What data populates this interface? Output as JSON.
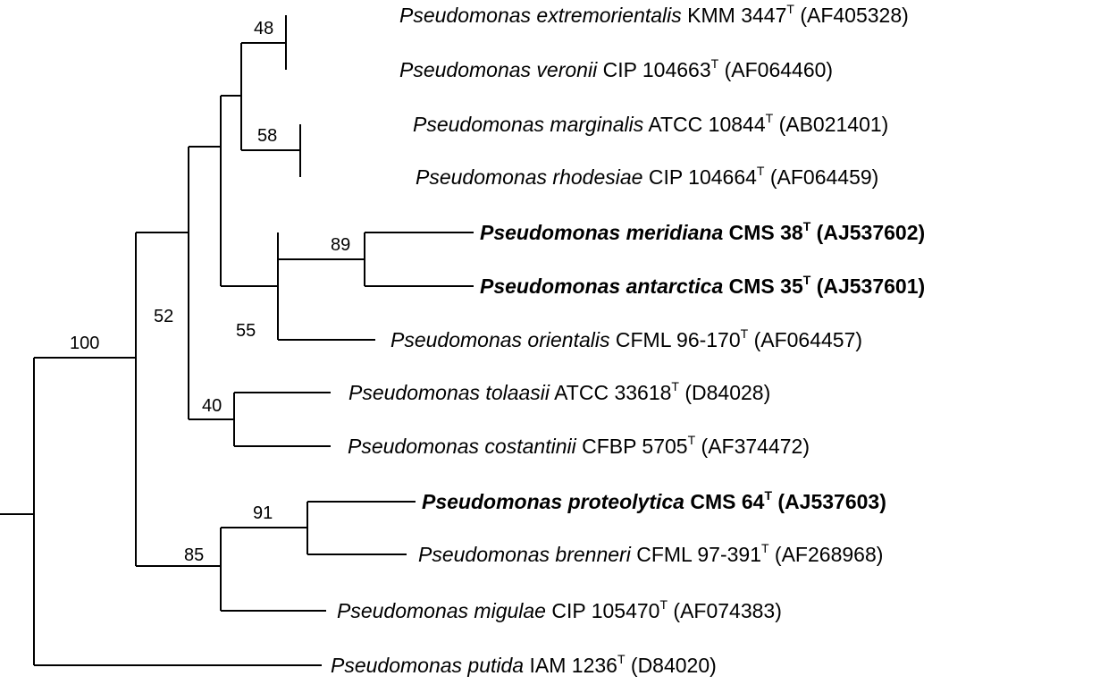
{
  "tree": {
    "taxa": [
      {
        "id": "extremorientalis",
        "genus_species": "Pseudomonas extremorientalis",
        "strain": "KMM 3447",
        "superscript": "T",
        "accession": "(AF405328)",
        "bold": false
      },
      {
        "id": "veronii",
        "genus_species": "Pseudomonas veronii",
        "strain": "CIP 104663",
        "superscript": "T",
        "accession": "(AF064460)",
        "bold": false
      },
      {
        "id": "marginalis",
        "genus_species": "Pseudomonas marginalis",
        "strain": "ATCC 10844",
        "superscript": "T",
        "accession": "(AB021401)",
        "bold": false
      },
      {
        "id": "rhodesiae",
        "genus_species": "Pseudomonas rhodesiae",
        "strain": "CIP 104664",
        "superscript": "T",
        "accession": "(AF064459)",
        "bold": false
      },
      {
        "id": "meridiana",
        "genus_species": "Pseudomonas meridiana",
        "strain": "CMS 38",
        "superscript": "T",
        "accession": "(AJ537602)",
        "bold": true
      },
      {
        "id": "antarctica",
        "genus_species": "Pseudomonas antarctica",
        "strain": "CMS 35",
        "superscript": "T",
        "accession": "(AJ537601)",
        "bold": true
      },
      {
        "id": "orientalis",
        "genus_species": "Pseudomonas orientalis",
        "strain": "CFML 96-170",
        "superscript": "T",
        "accession": "(AF064457)",
        "bold": false
      },
      {
        "id": "tolaasii",
        "genus_species": "Pseudomonas tolaasii",
        "strain": "ATCC 33618",
        "superscript": "T",
        "accession": "(D84028)",
        "bold": false
      },
      {
        "id": "costantinii",
        "genus_species": "Pseudomonas costantinii",
        "strain": "CFBP 5705",
        "superscript": "T",
        "accession": "(AF374472)",
        "bold": false
      },
      {
        "id": "proteolytica",
        "genus_species": "Pseudomonas proteolytica",
        "strain": "CMS 64",
        "superscript": "T",
        "accession": "(AJ537603)",
        "bold": true
      },
      {
        "id": "brenneri",
        "genus_species": "Pseudomonas brenneri",
        "strain": "CFML 97-391",
        "superscript": "T",
        "accession": "(AF268968)",
        "bold": false
      },
      {
        "id": "migulae",
        "genus_species": "Pseudomonas migulae",
        "strain": "CIP 105470",
        "superscript": "T",
        "accession": "(AF074383)",
        "bold": false
      },
      {
        "id": "putida",
        "genus_species": "Pseudomonas putida",
        "strain": "IAM 1236",
        "superscript": "T",
        "accession": "(D84020)",
        "bold": false
      }
    ],
    "bootstrap": [
      {
        "id": "n100",
        "value": "100"
      },
      {
        "id": "n52",
        "value": "52"
      },
      {
        "id": "n48",
        "value": "48"
      },
      {
        "id": "n58",
        "value": "58"
      },
      {
        "id": "n89",
        "value": "89"
      },
      {
        "id": "n55",
        "value": "55"
      },
      {
        "id": "n40",
        "value": "40"
      },
      {
        "id": "n91",
        "value": "91"
      },
      {
        "id": "n85",
        "value": "85"
      }
    ]
  }
}
